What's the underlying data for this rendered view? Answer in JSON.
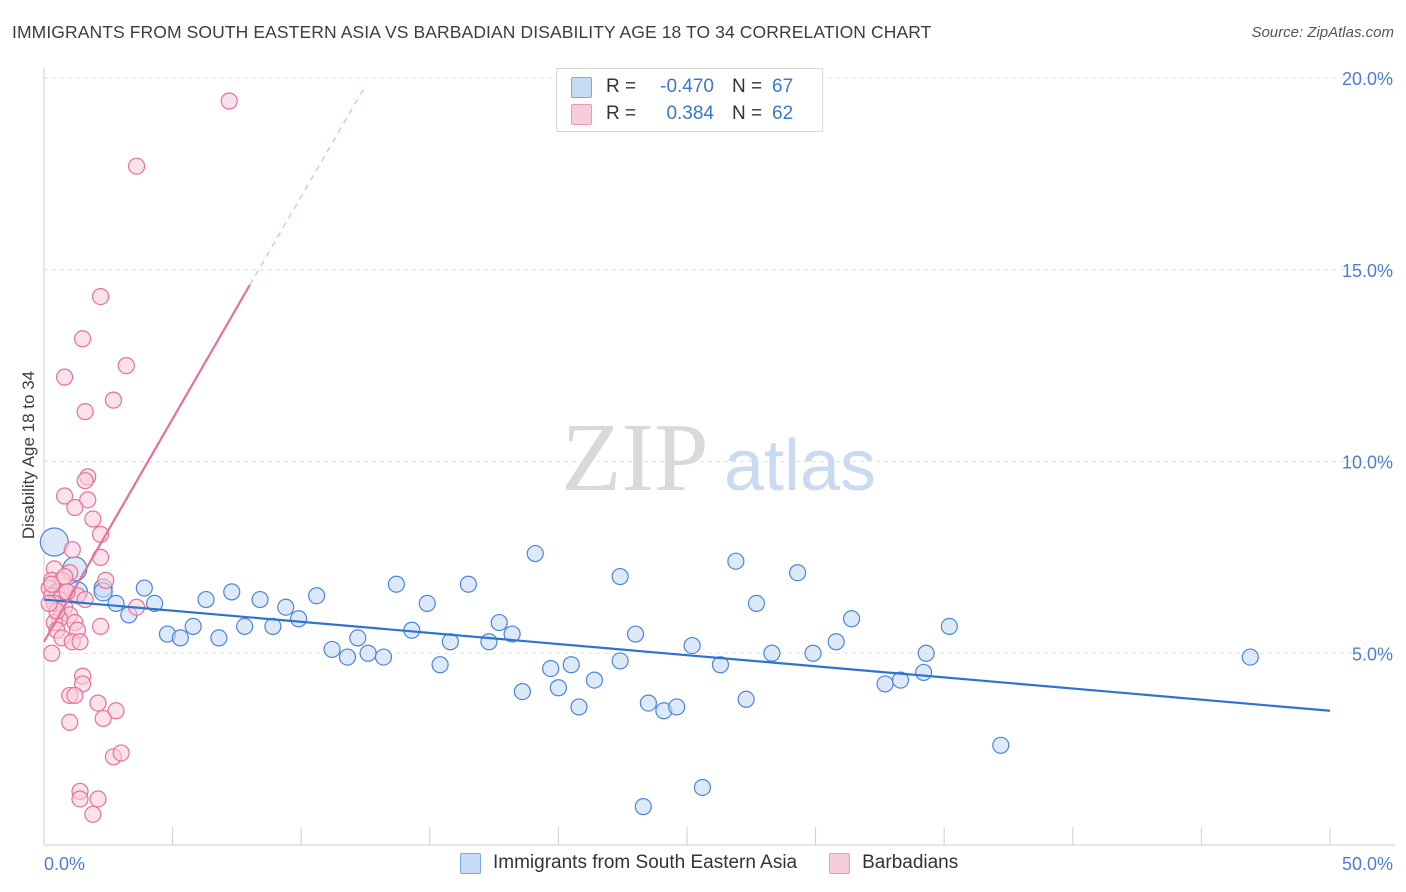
{
  "header": {
    "title": "IMMIGRANTS FROM SOUTH EASTERN ASIA VS BARBADIAN DISABILITY AGE 18 TO 34 CORRELATION CHART",
    "source": "Source: ZipAtlas.com"
  },
  "watermark": {
    "zip": "ZIP",
    "atlas": "atlas"
  },
  "legend": {
    "rows": [
      {
        "r_label": "R =",
        "r_value": "-0.470",
        "n_label": "N =",
        "n_value": "67",
        "color": "#aac8f0"
      },
      {
        "r_label": "R =",
        "r_value": "0.384",
        "n_label": "N =",
        "n_value": "62",
        "color": "#f5b8cc"
      }
    ]
  },
  "bottom_legend": [
    {
      "label": "Immigrants from South Eastern Asia",
      "color": "#aac8f0"
    },
    {
      "label": "Barbadians",
      "color": "#f5b8cc"
    }
  ],
  "chart_data": {
    "type": "scatter",
    "title": "IMMIGRANTS FROM SOUTH EASTERN ASIA VS BARBADIAN DISABILITY AGE 18 TO 34 CORRELATION CHART",
    "xlabel": "",
    "ylabel": "Disability Age 18 to 34",
    "xlim": [
      0,
      50
    ],
    "ylim": [
      0,
      20
    ],
    "x_tick_labels": [
      "0.0%",
      "50.0%"
    ],
    "y_tick_labels": [
      "5.0%",
      "10.0%",
      "15.0%",
      "20.0%"
    ],
    "y_ticks": [
      5,
      10,
      15,
      20
    ],
    "colors": {
      "blue": "#4a86d9",
      "blue_fill": "#c7dbf5",
      "pink": "#e8709a",
      "pink_fill": "#f8cdda",
      "trend_blue": "#2f72cf",
      "trend_pink": "#e8709a"
    },
    "series": [
      {
        "name": "Immigrants from South Eastern Asia",
        "color": "blue",
        "trend": {
          "x0": 0,
          "y0": 6.4,
          "x1": 50,
          "y1": 3.5
        },
        "points": [
          [
            0.4,
            7.9,
            14
          ],
          [
            1.2,
            7.2,
            12
          ],
          [
            1.3,
            6.6,
            10
          ],
          [
            2.3,
            6.7,
            9
          ],
          [
            2.8,
            6.3,
            8
          ],
          [
            3.3,
            6.0,
            8
          ],
          [
            3.9,
            6.7,
            8
          ],
          [
            4.3,
            6.3,
            8
          ],
          [
            4.8,
            5.5,
            8
          ],
          [
            5.3,
            5.4,
            8
          ],
          [
            5.8,
            5.7,
            8
          ],
          [
            6.3,
            6.4,
            8
          ],
          [
            6.8,
            5.4,
            8
          ],
          [
            7.3,
            6.6,
            8
          ],
          [
            7.8,
            5.7,
            8
          ],
          [
            8.4,
            6.4,
            8
          ],
          [
            8.9,
            5.7,
            8
          ],
          [
            9.4,
            6.2,
            8
          ],
          [
            9.9,
            5.9,
            8
          ],
          [
            10.6,
            6.5,
            8
          ],
          [
            11.2,
            5.1,
            8
          ],
          [
            11.8,
            4.9,
            8
          ],
          [
            12.2,
            5.4,
            8
          ],
          [
            12.6,
            5.0,
            8
          ],
          [
            13.2,
            4.9,
            8
          ],
          [
            13.7,
            6.8,
            8
          ],
          [
            14.3,
            5.6,
            8
          ],
          [
            14.9,
            6.3,
            8
          ],
          [
            15.4,
            4.7,
            8
          ],
          [
            15.8,
            5.3,
            8
          ],
          [
            16.5,
            6.8,
            8
          ],
          [
            17.3,
            5.3,
            8
          ],
          [
            17.7,
            5.8,
            8
          ],
          [
            18.2,
            5.5,
            8
          ],
          [
            18.6,
            4.0,
            8
          ],
          [
            19.1,
            7.6,
            8
          ],
          [
            19.7,
            4.6,
            8
          ],
          [
            20.0,
            4.1,
            8
          ],
          [
            20.5,
            4.7,
            8
          ],
          [
            20.8,
            3.6,
            8
          ],
          [
            21.4,
            4.3,
            8
          ],
          [
            22.4,
            7.0,
            8
          ],
          [
            22.4,
            4.8,
            8
          ],
          [
            23.0,
            5.5,
            8
          ],
          [
            23.5,
            3.7,
            8
          ],
          [
            24.1,
            3.5,
            8
          ],
          [
            24.6,
            3.6,
            8
          ],
          [
            25.2,
            5.2,
            8
          ],
          [
            25.6,
            1.5,
            8
          ],
          [
            26.3,
            4.7,
            8
          ],
          [
            26.9,
            7.4,
            8
          ],
          [
            27.3,
            3.8,
            8
          ],
          [
            27.7,
            6.3,
            8
          ],
          [
            28.3,
            5.0,
            8
          ],
          [
            29.3,
            7.1,
            8
          ],
          [
            29.9,
            5.0,
            8
          ],
          [
            30.8,
            5.3,
            8
          ],
          [
            31.4,
            5.9,
            8
          ],
          [
            32.7,
            4.2,
            8
          ],
          [
            33.3,
            4.3,
            8
          ],
          [
            34.2,
            4.5,
            8
          ],
          [
            34.3,
            5.0,
            8
          ],
          [
            35.2,
            5.7,
            8
          ],
          [
            37.2,
            2.6,
            8
          ],
          [
            46.9,
            4.9,
            8
          ],
          [
            23.3,
            1.0,
            8
          ],
          [
            2.3,
            6.6,
            9
          ]
        ]
      },
      {
        "name": "Barbadians",
        "color": "pink",
        "trend": {
          "x0": 0,
          "y0": 5.3,
          "x1": 8.0,
          "y1": 14.6,
          "dash_x1": 12.5,
          "dash_y1": 19.8
        },
        "points": [
          [
            7.2,
            19.4,
            8
          ],
          [
            3.6,
            17.7,
            8
          ],
          [
            2.2,
            14.3,
            8
          ],
          [
            1.5,
            13.2,
            8
          ],
          [
            3.2,
            12.5,
            8
          ],
          [
            0.8,
            12.2,
            8
          ],
          [
            2.7,
            11.6,
            8
          ],
          [
            1.6,
            11.3,
            8
          ],
          [
            1.7,
            9.6,
            8
          ],
          [
            1.6,
            9.5,
            8
          ],
          [
            0.8,
            9.1,
            8
          ],
          [
            1.7,
            9.0,
            8
          ],
          [
            1.2,
            8.8,
            8
          ],
          [
            1.9,
            8.5,
            8
          ],
          [
            2.2,
            8.1,
            8
          ],
          [
            1.1,
            7.7,
            8
          ],
          [
            2.2,
            7.5,
            8
          ],
          [
            0.4,
            7.2,
            8
          ],
          [
            1.0,
            7.1,
            8
          ],
          [
            0.3,
            6.9,
            8
          ],
          [
            0.7,
            6.9,
            8
          ],
          [
            2.4,
            6.9,
            8
          ],
          [
            0.2,
            6.7,
            8
          ],
          [
            0.5,
            6.6,
            8
          ],
          [
            0.9,
            6.6,
            8
          ],
          [
            0.3,
            6.5,
            8
          ],
          [
            1.3,
            6.5,
            8
          ],
          [
            0.6,
            6.4,
            8
          ],
          [
            0.4,
            6.3,
            8
          ],
          [
            0.8,
            6.2,
            8
          ],
          [
            1.0,
            6.0,
            8
          ],
          [
            0.6,
            5.9,
            8
          ],
          [
            3.6,
            6.2,
            8
          ],
          [
            0.4,
            5.8,
            8
          ],
          [
            1.2,
            5.8,
            8
          ],
          [
            0.5,
            5.6,
            8
          ],
          [
            2.2,
            5.7,
            8
          ],
          [
            1.3,
            5.6,
            8
          ],
          [
            0.7,
            5.4,
            8
          ],
          [
            1.1,
            5.3,
            8
          ],
          [
            1.4,
            5.3,
            8
          ],
          [
            0.3,
            5.0,
            8
          ],
          [
            1.5,
            4.4,
            8
          ],
          [
            1.5,
            4.2,
            8
          ],
          [
            1.0,
            3.9,
            8
          ],
          [
            1.2,
            3.9,
            8
          ],
          [
            2.8,
            3.5,
            8
          ],
          [
            2.1,
            3.7,
            8
          ],
          [
            2.3,
            3.3,
            8
          ],
          [
            1.0,
            3.2,
            8
          ],
          [
            2.7,
            2.3,
            8
          ],
          [
            3.0,
            2.4,
            8
          ],
          [
            1.4,
            1.4,
            8
          ],
          [
            1.4,
            1.2,
            8
          ],
          [
            2.1,
            1.2,
            8
          ],
          [
            1.9,
            0.8,
            8
          ],
          [
            0.3,
            6.8,
            8
          ],
          [
            0.5,
            6.1,
            8
          ],
          [
            0.8,
            7.0,
            8
          ],
          [
            0.2,
            6.3,
            8
          ],
          [
            1.6,
            6.4,
            8
          ],
          [
            0.9,
            6.6,
            8
          ]
        ]
      }
    ]
  }
}
